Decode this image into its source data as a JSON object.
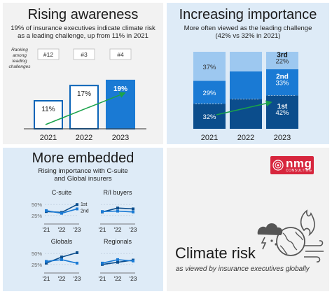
{
  "colors": {
    "dark_blue": "#0b4d8c",
    "mid_blue": "#1a7ad4",
    "light_blue": "#9dc8f0",
    "outline_blue": "#0b64b8",
    "arrow_green": "#1aa24b",
    "brand_red": "#d7263d"
  },
  "panel1": {
    "title": "Rising awareness",
    "subtitle_line1": "19% of insurance executives indicate climate risk",
    "subtitle_line2": "as a leading challenge, up from 11% in 2021",
    "rank_caption": [
      "Ranking",
      "among",
      "leading",
      "challenges"
    ]
  },
  "panel2": {
    "title": "Increasing importance",
    "subtitle_line1": "More often viewed as the leading challenge",
    "subtitle_line2": "(42% vs 32% in 2021)"
  },
  "panel3": {
    "title": "More embedded",
    "subtitle_line1": "Rising importance with C-suite",
    "subtitle_line2": "and Global insurers",
    "rank_labels": [
      "1st",
      "2nd"
    ]
  },
  "panel4": {
    "brand": "nmg",
    "brand_sub": "CONSULTING",
    "title": "Climate risk",
    "subtitle": "as viewed by insurance executives globally",
    "icon": "storm-cloud-globe-fire-wind-icon"
  },
  "chart_data": [
    {
      "type": "bar",
      "categories": [
        "2021",
        "2022",
        "2023"
      ],
      "values": [
        11,
        17,
        19
      ],
      "value_labels": [
        "11%",
        "17%",
        "19%"
      ],
      "rankings": [
        "#12",
        "#3",
        "#4"
      ],
      "highlight": "2023",
      "ylim": [
        0,
        22
      ]
    },
    {
      "type": "bar",
      "stacked": true,
      "normalized": true,
      "categories": [
        "2021",
        "2022",
        "2023"
      ],
      "series": [
        {
          "name": "1st",
          "values": [
            32,
            38,
            42
          ]
        },
        {
          "name": "2nd",
          "values": [
            29,
            35,
            33
          ]
        },
        {
          "name": "3rd",
          "values": [
            37,
            25,
            22
          ]
        }
      ],
      "value_labels": {
        "1st": [
          "32%",
          "",
          "42%"
        ],
        "2nd": [
          "29%",
          "",
          "33%"
        ],
        "3rd": [
          "37%",
          "",
          "22%"
        ]
      }
    },
    {
      "type": "line",
      "x": [
        "'21",
        "'22",
        "'23"
      ],
      "yticks": [
        "50%",
        "25%"
      ],
      "ylim": [
        15,
        60
      ],
      "panels": [
        {
          "title": "C-suite",
          "series": [
            {
              "name": "1st",
              "values": [
                34,
                32,
                50
              ]
            },
            {
              "name": "2nd",
              "values": [
                36,
                30,
                40
              ]
            }
          ]
        },
        {
          "title": "R/I buyers",
          "series": [
            {
              "name": "1st",
              "values": [
                33,
                42,
                40
              ]
            },
            {
              "name": "2nd",
              "values": [
                34,
                35,
                33
              ]
            }
          ]
        },
        {
          "title": "Globals",
          "series": [
            {
              "name": "1st",
              "values": [
                28,
                42,
                52
              ]
            },
            {
              "name": "2nd",
              "values": [
                32,
                36,
                28
              ]
            }
          ]
        },
        {
          "title": "Regionals",
          "series": [
            {
              "name": "1st",
              "values": [
                25,
                30,
                35
              ]
            },
            {
              "name": "2nd",
              "values": [
                28,
                36,
                33
              ]
            }
          ]
        }
      ]
    }
  ]
}
